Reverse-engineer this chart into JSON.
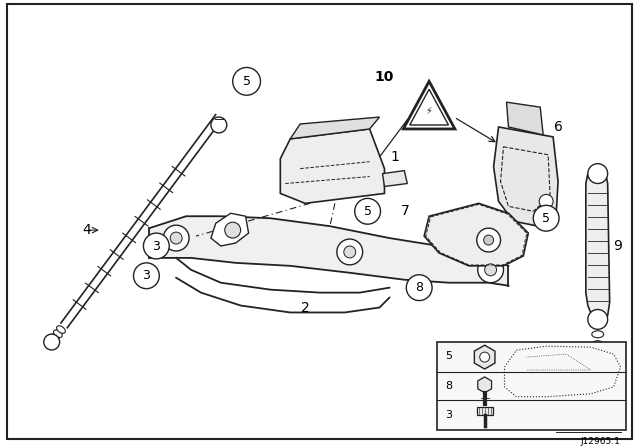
{
  "bg_color": "#ffffff",
  "border_color": "#222222",
  "line_color": "#222222",
  "text_color": "#000000",
  "fig_width": 6.4,
  "fig_height": 4.48,
  "dpi": 100,
  "part_number_label": "J12965.1"
}
